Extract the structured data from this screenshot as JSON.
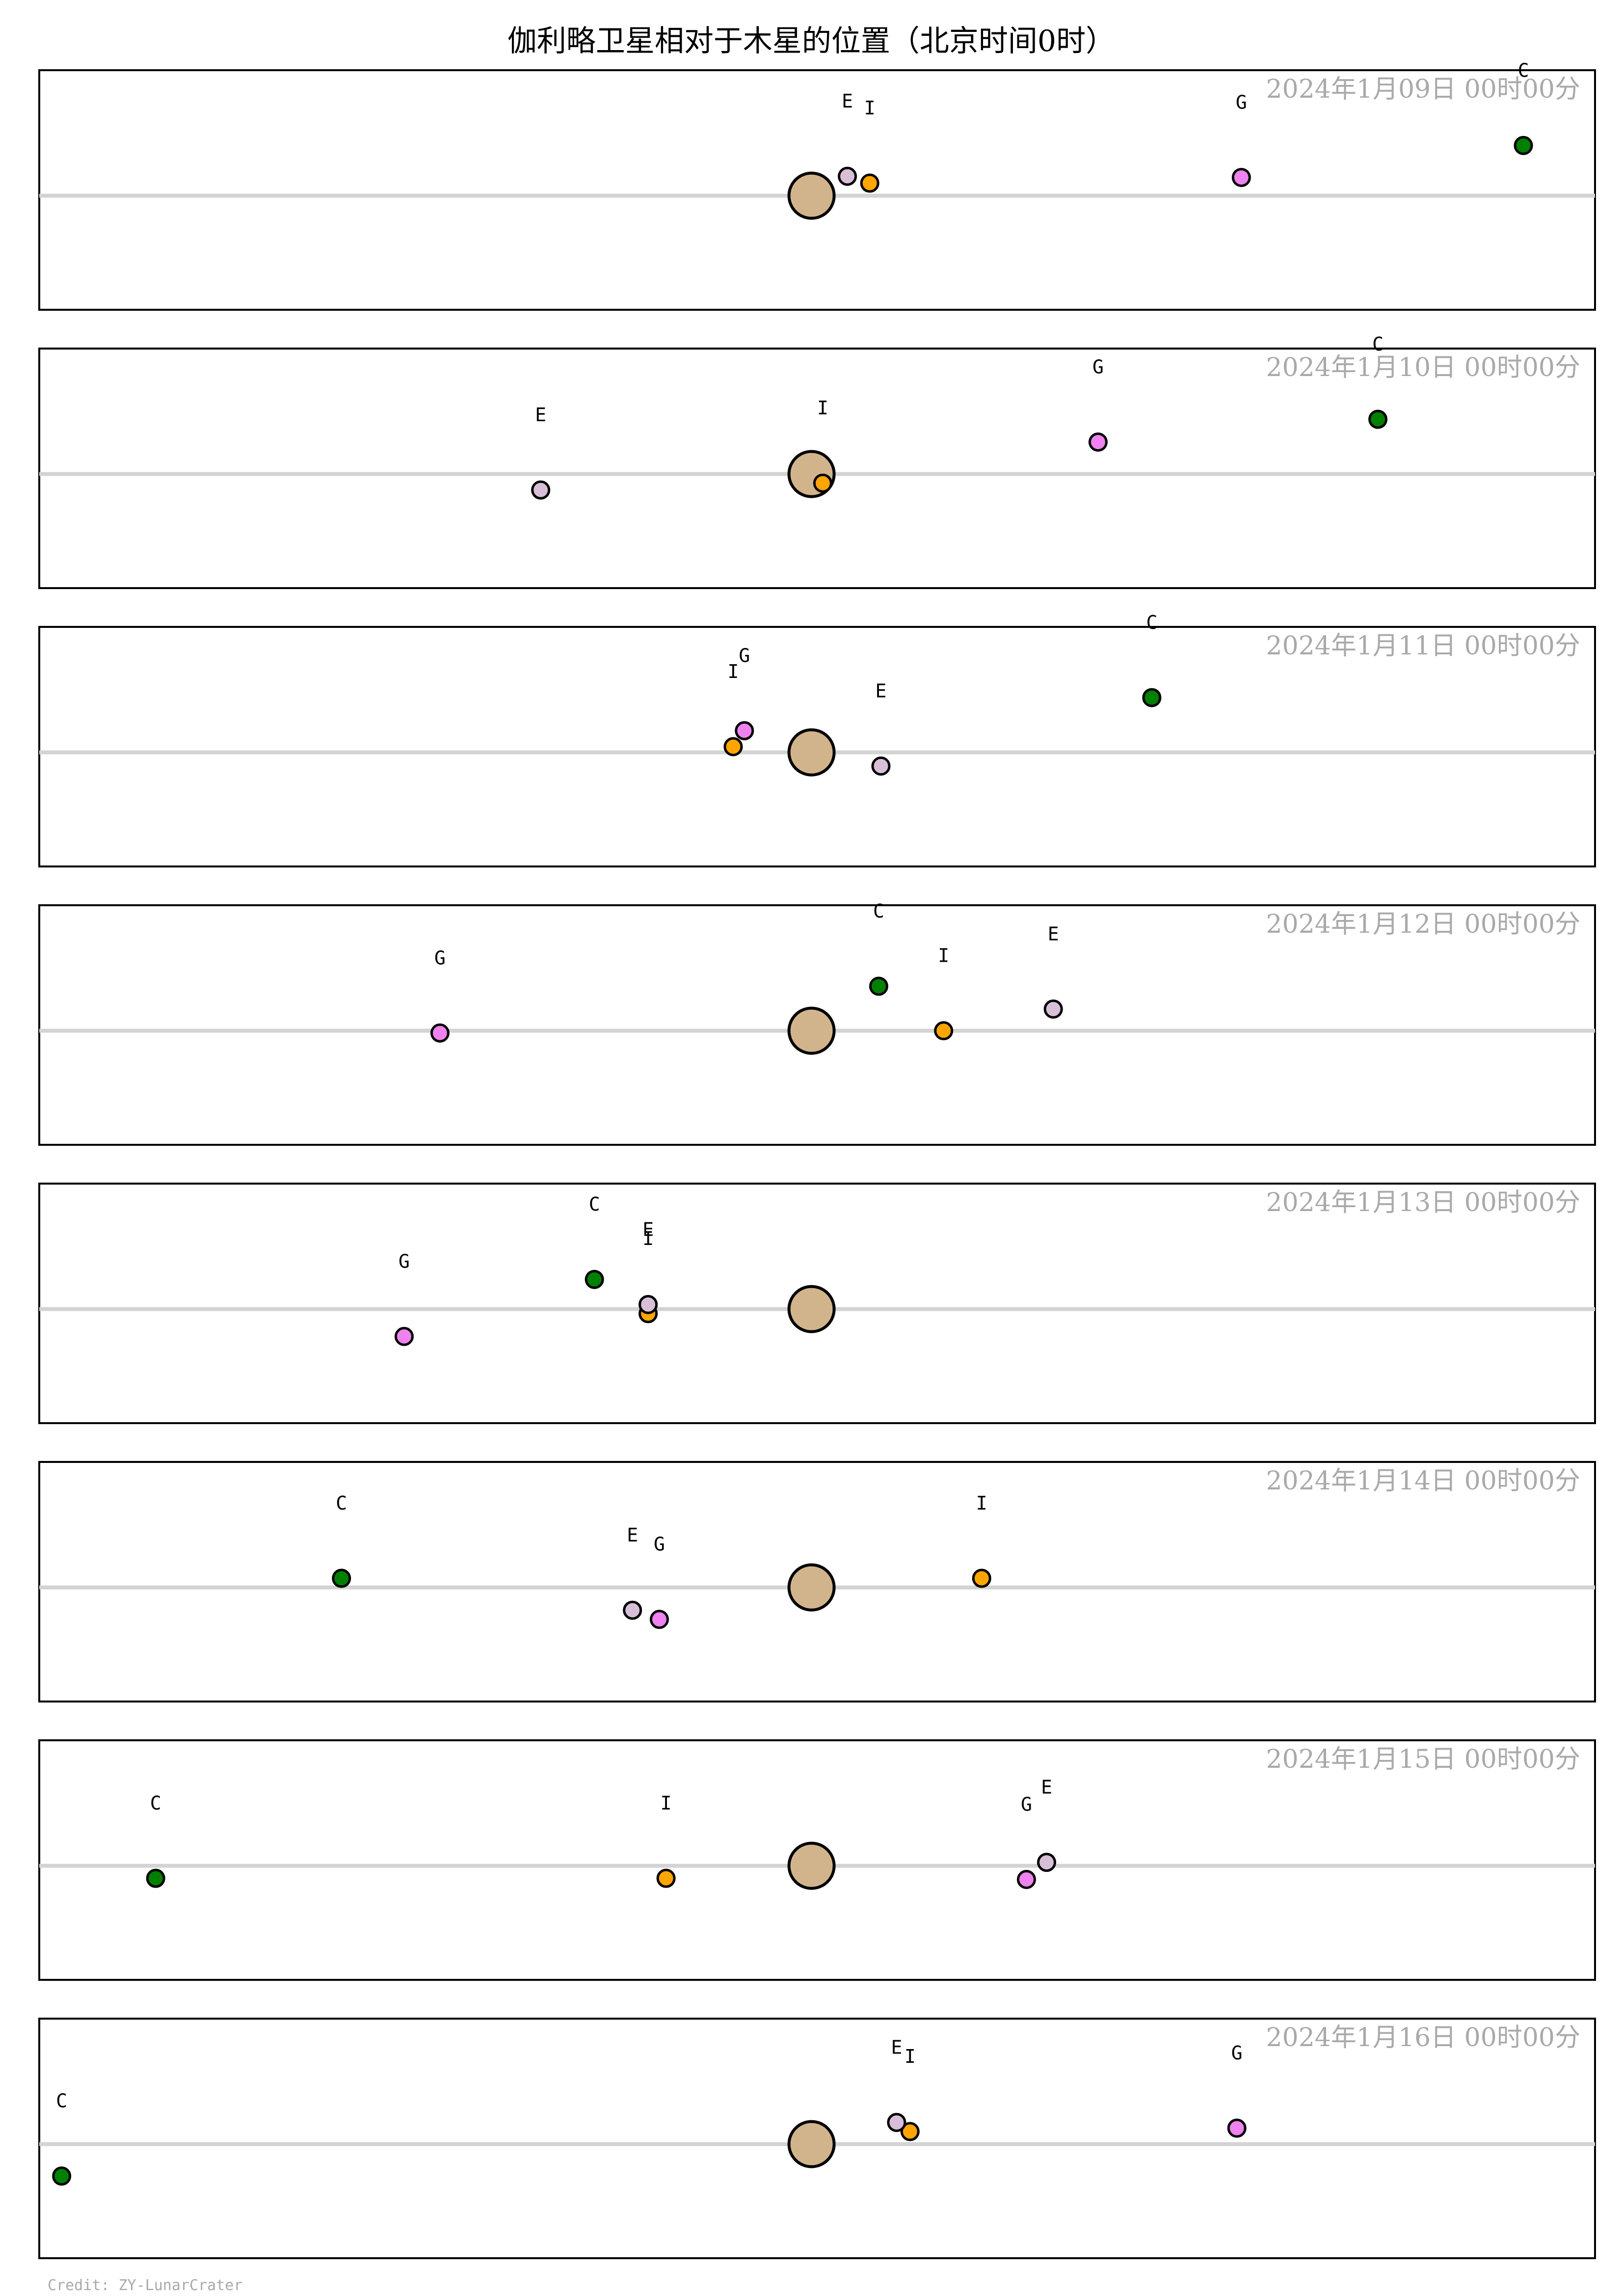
{
  "chart_data": {
    "type": "scatter",
    "title": "伽利略卫星相对于木星的位置（北京时间0时）",
    "credit": "Credit: ZY-LunarCrater",
    "xlim": [
      -34.5,
      35
    ],
    "ylim": [
      -5,
      5.5
    ],
    "grid": false,
    "colors": {
      "jupiter": "#d2b48c",
      "I": "#ffa500",
      "E": "#d8bfd8",
      "G": "#ee82ee",
      "C": "#008000",
      "equator": "#d3d3d3",
      "date": "#a9a9a9"
    },
    "moons": [
      {
        "key": "I",
        "label": "I"
      },
      {
        "key": "E",
        "label": "E"
      },
      {
        "key": "G",
        "label": "G"
      },
      {
        "key": "C",
        "label": "C"
      }
    ],
    "panels": [
      {
        "date": "2024年1月09日  00时00分",
        "moons": [
          {
            "key": "I",
            "x": 2.6,
            "y": 0.55
          },
          {
            "key": "E",
            "x": 1.6,
            "y": 0.85
          },
          {
            "key": "G",
            "x": 19.2,
            "y": 0.8
          },
          {
            "key": "C",
            "x": 31.8,
            "y": 2.2
          }
        ]
      },
      {
        "date": "2024年1月10日  00时00分",
        "moons": [
          {
            "key": "I",
            "x": 0.5,
            "y": -0.4
          },
          {
            "key": "E",
            "x": -12.1,
            "y": -0.7
          },
          {
            "key": "G",
            "x": 12.8,
            "y": 1.4
          },
          {
            "key": "C",
            "x": 25.3,
            "y": 2.4
          }
        ]
      },
      {
        "date": "2024年1月11日  00时00分",
        "moons": [
          {
            "key": "I",
            "x": -3.5,
            "y": 0.25
          },
          {
            "key": "E",
            "x": 3.1,
            "y": -0.6
          },
          {
            "key": "G",
            "x": -3.0,
            "y": 0.95
          },
          {
            "key": "C",
            "x": 15.2,
            "y": 2.4
          }
        ]
      },
      {
        "date": "2024年1月12日  00时00分",
        "moons": [
          {
            "key": "I",
            "x": 5.9,
            "y": 0.0
          },
          {
            "key": "E",
            "x": 10.8,
            "y": 0.95
          },
          {
            "key": "G",
            "x": -16.6,
            "y": -0.1
          },
          {
            "key": "C",
            "x": 3.0,
            "y": 1.95
          }
        ]
      },
      {
        "date": "2024年1月13日  00时00分",
        "moons": [
          {
            "key": "I",
            "x": -7.3,
            "y": -0.2
          },
          {
            "key": "E",
            "x": -7.3,
            "y": 0.2
          },
          {
            "key": "G",
            "x": -18.2,
            "y": -1.2
          },
          {
            "key": "C",
            "x": -9.7,
            "y": 1.3
          }
        ]
      },
      {
        "date": "2024年1月14日  00时00分",
        "moons": [
          {
            "key": "I",
            "x": 7.6,
            "y": 0.4
          },
          {
            "key": "E",
            "x": -8.0,
            "y": -1.0
          },
          {
            "key": "G",
            "x": -6.8,
            "y": -1.4
          },
          {
            "key": "C",
            "x": -21.0,
            "y": 0.4
          }
        ]
      },
      {
        "date": "2024年1月15日  00时00分",
        "moons": [
          {
            "key": "I",
            "x": -6.5,
            "y": -0.55
          },
          {
            "key": "E",
            "x": 10.5,
            "y": 0.15
          },
          {
            "key": "G",
            "x": 9.6,
            "y": -0.6
          },
          {
            "key": "C",
            "x": -29.3,
            "y": -0.55
          }
        ]
      },
      {
        "date": "2024年1月16日  00时00分",
        "moons": [
          {
            "key": "I",
            "x": 4.4,
            "y": 0.55
          },
          {
            "key": "E",
            "x": 3.8,
            "y": 0.95
          },
          {
            "key": "G",
            "x": 19.0,
            "y": 0.7
          },
          {
            "key": "C",
            "x": -33.5,
            "y": -1.4
          }
        ]
      }
    ]
  }
}
